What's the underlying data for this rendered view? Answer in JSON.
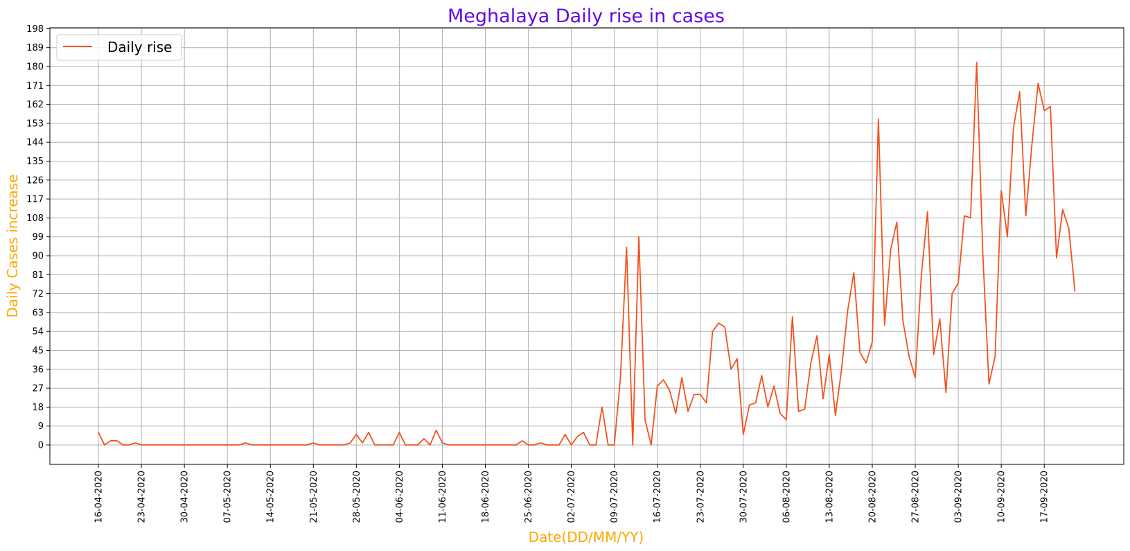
{
  "chart_data": {
    "type": "line",
    "title": "Meghalaya Daily rise in cases",
    "xlabel": "Date(DD/MM/YY)",
    "ylabel": "Daily Cases increase",
    "ylim": [
      0,
      198
    ],
    "y_ticks": [
      0,
      9,
      18,
      27,
      36,
      45,
      54,
      63,
      72,
      81,
      90,
      99,
      108,
      117,
      126,
      135,
      144,
      153,
      162,
      171,
      180,
      189,
      198
    ],
    "x_tick_labels": [
      "16-04-2020",
      "23-04-2020",
      "30-04-2020",
      "07-05-2020",
      "14-05-2020",
      "21-05-2020",
      "28-05-2020",
      "04-06-2020",
      "11-06-2020",
      "18-06-2020",
      "25-06-2020",
      "02-07-2020",
      "09-07-2020",
      "16-07-2020",
      "23-07-2020",
      "30-07-2020",
      "06-08-2020",
      "13-08-2020",
      "20-08-2020",
      "27-08-2020",
      "03-09-2020",
      "10-09-2020",
      "17-09-2020"
    ],
    "grid": true,
    "legend_position": "top-left",
    "series": [
      {
        "name": "Daily rise",
        "color": "#f4511e",
        "start_date": "16-04-2020",
        "values": [
          6,
          0,
          2,
          2,
          0,
          0,
          1,
          0,
          0,
          0,
          0,
          0,
          0,
          0,
          0,
          0,
          0,
          0,
          0,
          0,
          0,
          0,
          0,
          0,
          1,
          0,
          0,
          0,
          0,
          0,
          0,
          0,
          0,
          0,
          0,
          1,
          0,
          0,
          0,
          0,
          0,
          1,
          5,
          1,
          6,
          0,
          0,
          0,
          0,
          6,
          0,
          0,
          0,
          3,
          0,
          7,
          1,
          0,
          0,
          0,
          0,
          0,
          0,
          0,
          0,
          0,
          0,
          0,
          0,
          2,
          0,
          0,
          1,
          0,
          0,
          0,
          5,
          0,
          4,
          6,
          0,
          0,
          18,
          0,
          0,
          32,
          94,
          0,
          99,
          12,
          0,
          28,
          31,
          26,
          15,
          32,
          16,
          24,
          24,
          20,
          54,
          58,
          56,
          36,
          41,
          5,
          19,
          20,
          33,
          18,
          28,
          15,
          12,
          61,
          16,
          17,
          39,
          52,
          22,
          43,
          14,
          36,
          64,
          82,
          44,
          39,
          49,
          155,
          57,
          93,
          106,
          59,
          42,
          32,
          81,
          111,
          43,
          60,
          25,
          72,
          77,
          109,
          108,
          182,
          91,
          29,
          42,
          121,
          99,
          151,
          168,
          109,
          143,
          172,
          159,
          161,
          89,
          112,
          103,
          73
        ]
      }
    ]
  },
  "colors": {
    "title": "#6109e6",
    "axis_labels": "#ffa500",
    "grid": "#b0b0b0",
    "line": "#f4511e"
  }
}
